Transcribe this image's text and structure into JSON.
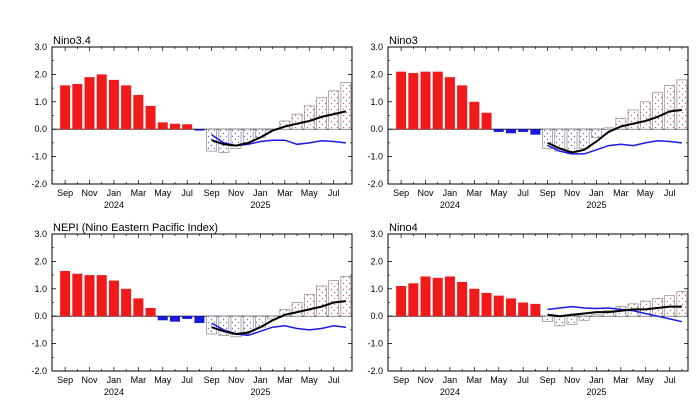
{
  "chart_data": [
    {
      "type": "bar",
      "title": "Nino3.4",
      "ylim": [
        -2.0,
        3.0
      ],
      "yticks": [
        "3.0",
        "2.0",
        "1.0",
        "0.0",
        "-1.0",
        "-2.0"
      ],
      "month_labels": [
        "Sep",
        "Nov",
        "Jan",
        "Mar",
        "May",
        "Jul",
        "Sep",
        "Nov",
        "Jan",
        "Mar",
        "May",
        "Jul"
      ],
      "year_labels": [
        "2024",
        "2025"
      ],
      "observed": [
        1.6,
        1.65,
        1.9,
        2.0,
        1.8,
        1.6,
        1.25,
        0.85,
        0.25,
        0.2,
        0.18,
        -0.05
      ],
      "forecast_bars": [
        -0.8,
        -0.85,
        -0.7,
        -0.5,
        -0.3,
        0.0,
        0.3,
        0.55,
        0.85,
        1.15,
        1.4,
        1.7
      ],
      "ensemble_mean": [
        -0.4,
        -0.55,
        -0.6,
        -0.5,
        -0.3,
        -0.05,
        0.1,
        0.2,
        0.3,
        0.45,
        0.55,
        0.65
      ],
      "blue_line": [
        -0.2,
        -0.5,
        -0.6,
        -0.55,
        -0.45,
        -0.4,
        -0.4,
        -0.55,
        -0.5,
        -0.42,
        -0.45,
        -0.5
      ]
    },
    {
      "type": "bar",
      "title": "Nino3",
      "ylim": [
        -2.0,
        3.0
      ],
      "yticks": [
        "3.0",
        "2.0",
        "1.0",
        "0.0",
        "-1.0",
        "-2.0"
      ],
      "month_labels": [
        "Sep",
        "Nov",
        "Jan",
        "Mar",
        "May",
        "Jul",
        "Sep",
        "Nov",
        "Jan",
        "Mar",
        "May",
        "Jul"
      ],
      "year_labels": [
        "2024",
        "2025"
      ],
      "observed": [
        2.1,
        2.05,
        2.1,
        2.1,
        1.9,
        1.6,
        1.0,
        0.6,
        -0.1,
        -0.15,
        -0.1,
        -0.2
      ],
      "forecast_bars": [
        -0.7,
        -0.8,
        -0.9,
        -0.7,
        -0.3,
        0.05,
        0.4,
        0.7,
        1.0,
        1.35,
        1.6,
        1.8
      ],
      "ensemble_mean": [
        -0.5,
        -0.7,
        -0.85,
        -0.75,
        -0.45,
        -0.1,
        0.1,
        0.2,
        0.3,
        0.45,
        0.65,
        0.7
      ],
      "blue_line": [
        -0.6,
        -0.8,
        -0.9,
        -0.9,
        -0.75,
        -0.6,
        -0.55,
        -0.6,
        -0.5,
        -0.42,
        -0.45,
        -0.5
      ]
    },
    {
      "type": "bar",
      "title": "NEPI (Nino Eastern Pacific Index)",
      "ylim": [
        -2.0,
        3.0
      ],
      "yticks": [
        "3.0",
        "2.0",
        "1.0",
        "0.0",
        "-1.0",
        "-2.0"
      ],
      "month_labels": [
        "Sep",
        "Nov",
        "Jan",
        "Mar",
        "May",
        "Jul",
        "Sep",
        "Nov",
        "Jan",
        "Mar",
        "May",
        "Jul"
      ],
      "year_labels": [
        "2024",
        "2025"
      ],
      "observed": [
        1.65,
        1.55,
        1.5,
        1.5,
        1.3,
        1.0,
        0.65,
        0.3,
        -0.15,
        -0.2,
        -0.1,
        -0.25
      ],
      "forecast_bars": [
        -0.65,
        -0.7,
        -0.75,
        -0.65,
        -0.4,
        -0.1,
        0.25,
        0.5,
        0.8,
        1.1,
        1.3,
        1.45
      ],
      "ensemble_mean": [
        -0.4,
        -0.55,
        -0.65,
        -0.6,
        -0.4,
        -0.15,
        0.05,
        0.15,
        0.25,
        0.35,
        0.5,
        0.55
      ],
      "blue_line": [
        -0.25,
        -0.5,
        -0.65,
        -0.7,
        -0.55,
        -0.4,
        -0.35,
        -0.45,
        -0.5,
        -0.45,
        -0.35,
        -0.4
      ]
    },
    {
      "type": "bar",
      "title": "Nino4",
      "ylim": [
        -2.0,
        3.0
      ],
      "yticks": [
        "3.0",
        "2.0",
        "1.0",
        "0.0",
        "-1.0",
        "-2.0"
      ],
      "month_labels": [
        "Sep",
        "Nov",
        "Jan",
        "Mar",
        "May",
        "Jul",
        "Sep",
        "Nov",
        "Jan",
        "Mar",
        "May",
        "Jul"
      ],
      "year_labels": [
        "2024",
        "2025"
      ],
      "observed": [
        1.1,
        1.2,
        1.45,
        1.4,
        1.45,
        1.25,
        1.0,
        0.85,
        0.75,
        0.65,
        0.5,
        0.45
      ],
      "forecast_bars": [
        -0.2,
        -0.35,
        -0.3,
        -0.15,
        0.05,
        0.2,
        0.35,
        0.45,
        0.55,
        0.65,
        0.75,
        0.9
      ],
      "ensemble_mean": [
        0.05,
        0.0,
        0.05,
        0.1,
        0.15,
        0.15,
        0.2,
        0.25,
        0.25,
        0.3,
        0.35,
        0.35
      ],
      "blue_line": [
        0.25,
        0.3,
        0.35,
        0.3,
        0.28,
        0.3,
        0.25,
        0.2,
        0.1,
        0.0,
        -0.1,
        -0.2
      ]
    }
  ],
  "colors": {
    "warm_bar": "#f01a1a",
    "cool_bar": "#1a1adc",
    "forecast_bar_stroke": "#888888",
    "forecast_dot_warm": "#d06868",
    "forecast_dot_cool": "#7070c8",
    "mean_line": "#000000",
    "blue_line": "#1a1ae6"
  }
}
